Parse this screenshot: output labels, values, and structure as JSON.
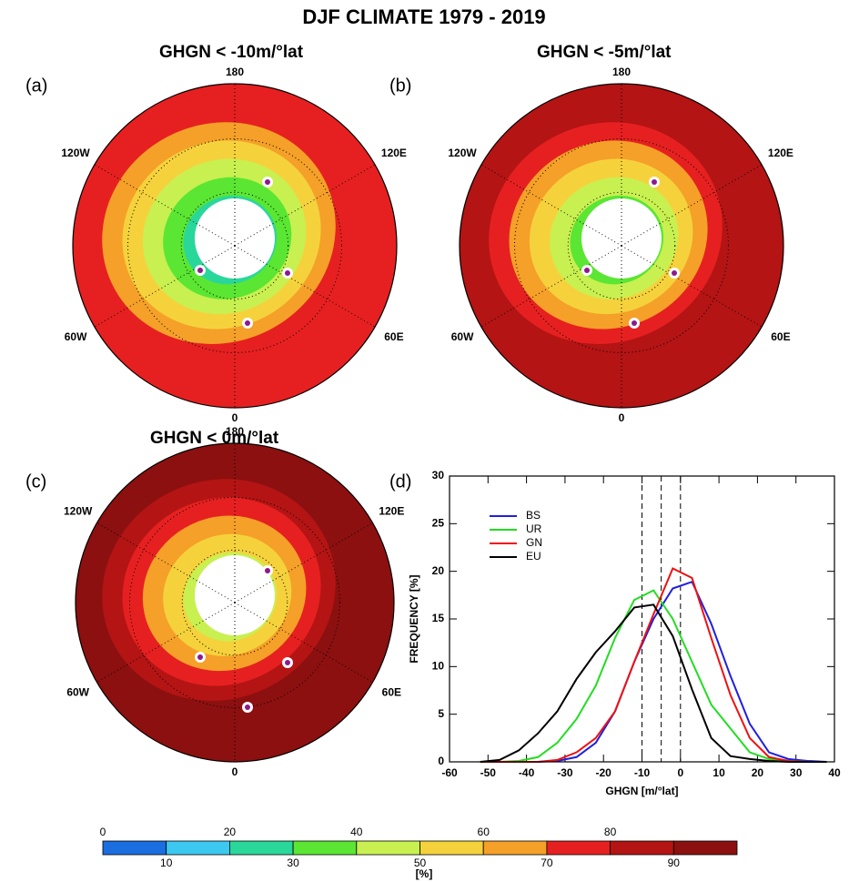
{
  "title": "DJF  CLIMATE  1979 - 2019",
  "maps": [
    {
      "label": "(a)",
      "title": "GHGN < -10m/°lat",
      "lon_labels": [
        "180",
        "120E",
        "60E",
        "0",
        "60W",
        "120W"
      ]
    },
    {
      "label": "(b)",
      "title": "GHGN < -5m/°lat",
      "lon_labels": [
        "180",
        "120E",
        "60E",
        "0",
        "60W",
        "120W"
      ]
    },
    {
      "label": "(c)",
      "title": "GHGN < 0m/°lat",
      "lon_labels": [
        "180",
        "120E",
        "60E",
        "0",
        "60W",
        "120W"
      ]
    }
  ],
  "chart_data": {
    "type": "line",
    "label": "(d)",
    "xlabel": "GHGN [m/°lat]",
    "ylabel": "FREQUENCY [%]",
    "x": [
      -52,
      -47,
      -42,
      -37,
      -32,
      -27,
      -22,
      -17,
      -12,
      -7,
      -2,
      3,
      8,
      13,
      18,
      23,
      28,
      33,
      38
    ],
    "series": [
      {
        "name": "BS",
        "color": "#1f1fe0",
        "values": [
          0,
          0,
          0,
          0,
          0.1,
          0.5,
          2,
          5.3,
          10.5,
          15,
          18.2,
          18.9,
          14.5,
          9,
          4,
          1,
          0.3,
          0.1,
          0
        ]
      },
      {
        "name": "UR",
        "color": "#22dd22",
        "values": [
          0,
          0,
          0.1,
          0.5,
          2,
          4.5,
          8,
          13,
          17,
          18,
          15,
          10.5,
          6,
          3.5,
          1,
          0.3,
          0.1,
          0,
          0
        ]
      },
      {
        "name": "GN",
        "color": "#ee1111",
        "values": [
          0,
          0,
          0,
          0,
          0.2,
          1,
          2.5,
          5.3,
          10.5,
          15.5,
          20.3,
          19.3,
          13,
          7,
          2.5,
          0.5,
          0.1,
          0,
          0
        ]
      },
      {
        "name": "EU",
        "color": "#000000",
        "values": [
          0,
          0.2,
          1.2,
          3,
          5.3,
          8.7,
          11.5,
          13.7,
          16.2,
          16.5,
          13.2,
          7.6,
          2.5,
          0.6,
          0.3,
          0.1,
          0,
          0,
          0
        ]
      }
    ],
    "vlines": [
      -10,
      -5,
      0
    ],
    "xlim": [
      -60,
      40
    ],
    "xticks": [
      -60,
      -50,
      -40,
      -30,
      -20,
      -10,
      0,
      10,
      20,
      30,
      40
    ],
    "ylim": [
      0,
      30
    ],
    "yticks": [
      0,
      5,
      10,
      15,
      20,
      25,
      30
    ],
    "legend": "upper-left"
  },
  "colorbar": {
    "label": "[%]",
    "ticks": [
      0,
      10,
      20,
      30,
      40,
      50,
      60,
      70,
      80,
      90
    ],
    "colors": [
      "#1a6ee0",
      "#3cc8f0",
      "#2ad79b",
      "#5ae632",
      "#c8f050",
      "#f5d23c",
      "#f5a028",
      "#e62020",
      "#b41414",
      "#8c1010"
    ]
  }
}
